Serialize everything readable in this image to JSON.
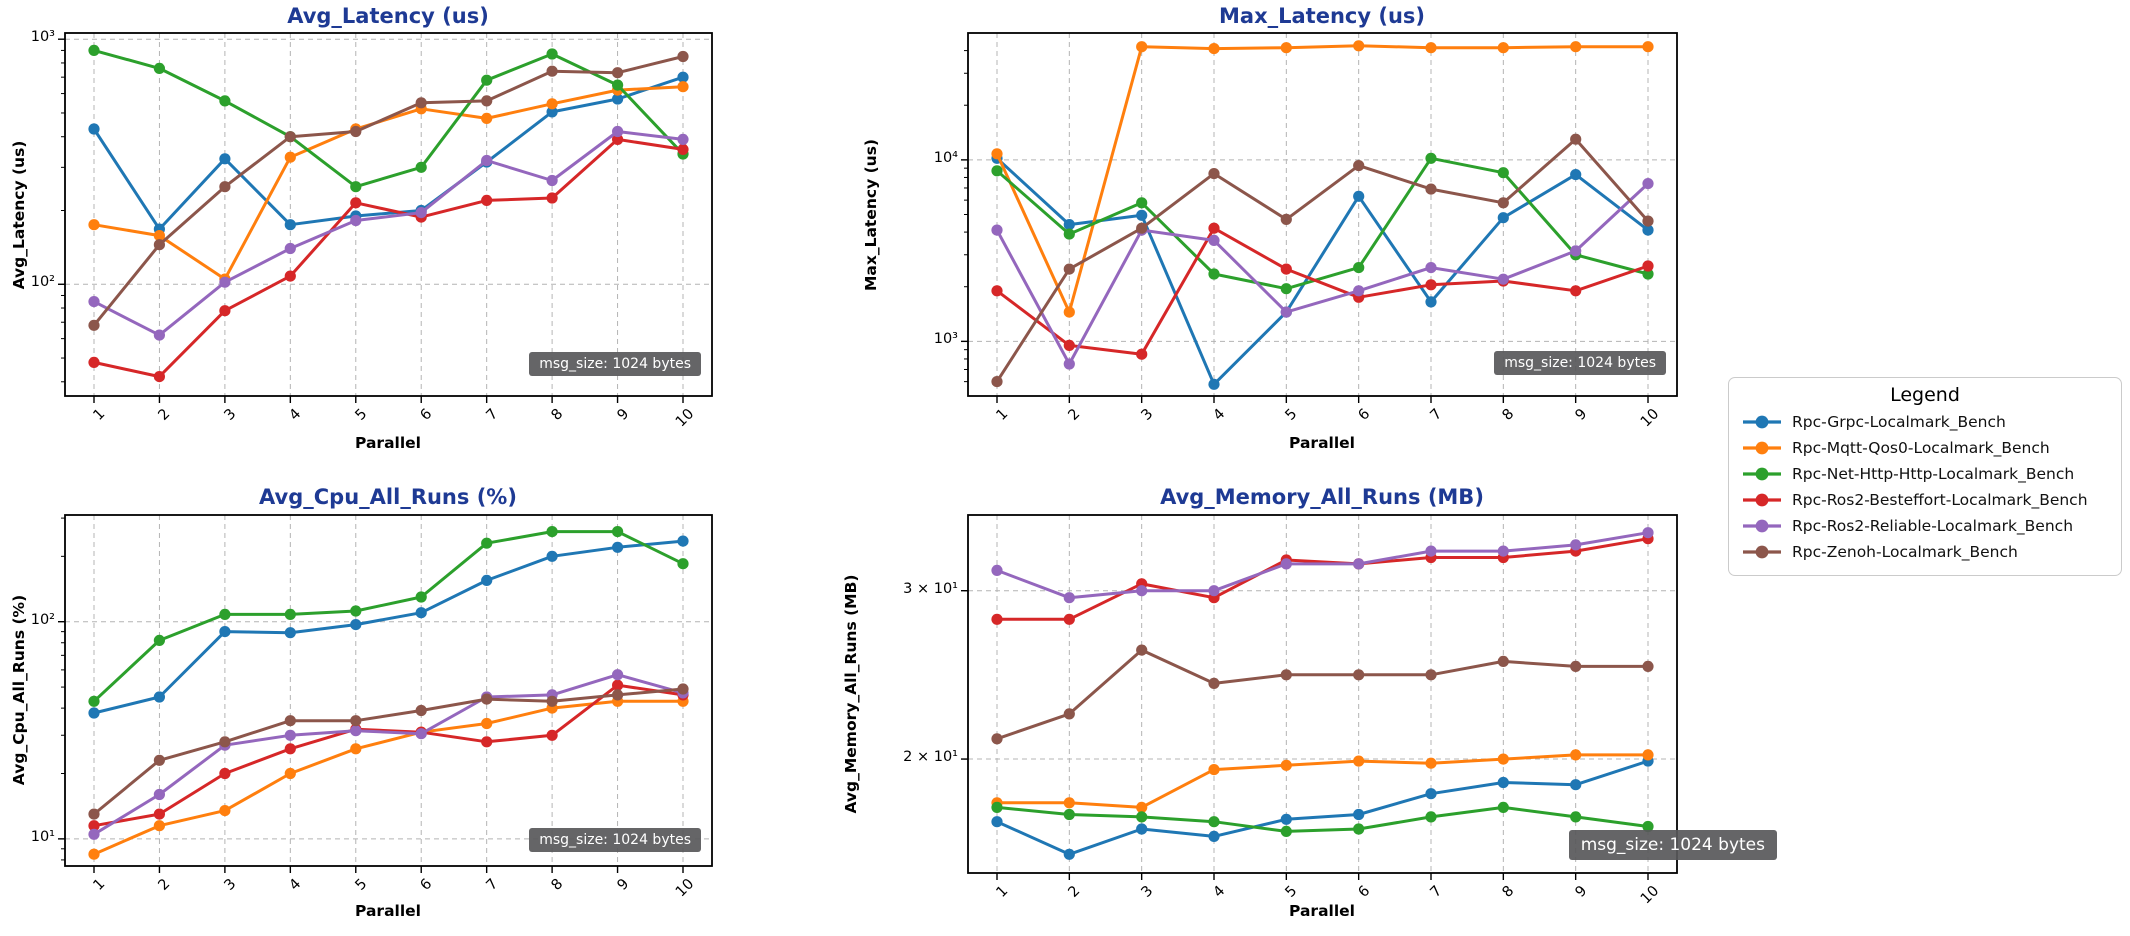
{
  "figure": {
    "background": "#ffffff",
    "title_color": "#1e3a94"
  },
  "legend": {
    "title": "Legend",
    "entries": [
      {
        "label": "Rpc-Grpc-Localmark_Bench",
        "color": "#1f77b4"
      },
      {
        "label": "Rpc-Mqtt-Qos0-Localmark_Bench",
        "color": "#ff7f0e"
      },
      {
        "label": "Rpc-Net-Http-Http-Localmark_Bench",
        "color": "#2ca02c"
      },
      {
        "label": "Rpc-Ros2-Besteffort-Localmark_Bench",
        "color": "#d62728"
      },
      {
        "label": "Rpc-Ros2-Reliable-Localmark_Bench",
        "color": "#9467bd"
      },
      {
        "label": "Rpc-Zenoh-Localmark_Bench",
        "color": "#8c564b"
      }
    ]
  },
  "chart_data": [
    {
      "type": "line",
      "title": "Avg_Latency (us)",
      "xlabel": "Parallel",
      "ylabel": "Avg_Latency (us)",
      "annotation": "msg_size: 1024 bytes",
      "yscale": "log",
      "grid": true,
      "ylim": [
        35,
        1060
      ],
      "x": [
        1,
        2,
        3,
        4,
        5,
        6,
        7,
        8,
        9,
        10
      ],
      "xticklabels": [
        "1",
        "2",
        "3",
        "4",
        "5",
        "6",
        "7",
        "8",
        "9",
        "10"
      ],
      "yticks": [
        {
          "value": 100,
          "label": "10²"
        },
        {
          "value": 1000,
          "label": "10³"
        }
      ],
      "series": [
        {
          "name": "Rpc-Grpc-Localmark_Bench",
          "color": "#1f77b4",
          "values": [
            430,
            168,
            325,
            175,
            190,
            200,
            315,
            505,
            570,
            700
          ]
        },
        {
          "name": "Rpc-Mqtt-Qos0-Localmark_Bench",
          "color": "#ff7f0e",
          "values": [
            175,
            158,
            105,
            330,
            430,
            520,
            475,
            545,
            620,
            640
          ]
        },
        {
          "name": "Rpc-Net-Http-Http-Localmark_Bench",
          "color": "#2ca02c",
          "values": [
            900,
            760,
            560,
            400,
            250,
            300,
            680,
            870,
            650,
            340
          ]
        },
        {
          "name": "Rpc-Ros2-Besteffort-Localmark_Bench",
          "color": "#d62728",
          "values": [
            48,
            42,
            78,
            108,
            215,
            188,
            220,
            225,
            390,
            355
          ]
        },
        {
          "name": "Rpc-Ros2-Reliable-Localmark_Bench",
          "color": "#9467bd",
          "values": [
            85,
            62,
            102,
            140,
            182,
            196,
            320,
            265,
            420,
            390
          ]
        },
        {
          "name": "Rpc-Zenoh-Localmark_Bench",
          "color": "#8c564b",
          "values": [
            68,
            145,
            250,
            400,
            420,
            550,
            560,
            740,
            730,
            850
          ]
        }
      ]
    },
    {
      "type": "line",
      "title": "Max_Latency (us)",
      "xlabel": "Parallel",
      "ylabel": "Max_Latency (us)",
      "annotation": "msg_size: 1024 bytes",
      "yscale": "log",
      "grid": true,
      "ylim": [
        500,
        50000
      ],
      "x": [
        1,
        2,
        3,
        4,
        5,
        6,
        7,
        8,
        9,
        10
      ],
      "xticklabels": [
        "1",
        "2",
        "3",
        "4",
        "5",
        "6",
        "7",
        "8",
        "9",
        "10"
      ],
      "yticks": [
        {
          "value": 1000,
          "label": "10³"
        },
        {
          "value": 10000,
          "label": "10⁴"
        }
      ],
      "series": [
        {
          "name": "Rpc-Grpc-Localmark_Bench",
          "color": "#1f77b4",
          "values": [
            10200,
            4400,
            4950,
            580,
            1450,
            6300,
            1650,
            4800,
            8300,
            4100
          ]
        },
        {
          "name": "Rpc-Mqtt-Qos0-Localmark_Bench",
          "color": "#ff7f0e",
          "values": [
            10800,
            1450,
            42000,
            41000,
            41500,
            42500,
            41500,
            41500,
            42000,
            42000
          ]
        },
        {
          "name": "Rpc-Net-Http-Http-Localmark_Bench",
          "color": "#2ca02c",
          "values": [
            8700,
            3900,
            5800,
            2350,
            1950,
            2550,
            10200,
            8500,
            3000,
            2350
          ]
        },
        {
          "name": "Rpc-Ros2-Besteffort-Localmark_Bench",
          "color": "#d62728",
          "values": [
            1900,
            950,
            850,
            4200,
            2500,
            1750,
            2050,
            2150,
            1900,
            2600
          ]
        },
        {
          "name": "Rpc-Ros2-Reliable-Localmark_Bench",
          "color": "#9467bd",
          "values": [
            4100,
            750,
            4100,
            3600,
            1450,
            1900,
            2550,
            2200,
            3150,
            7400
          ]
        },
        {
          "name": "Rpc-Zenoh-Localmark_Bench",
          "color": "#8c564b",
          "values": [
            600,
            2500,
            4200,
            8400,
            4700,
            9300,
            6900,
            5800,
            13000,
            4600
          ]
        }
      ]
    },
    {
      "type": "line",
      "title": "Avg_Cpu_All_Runs (%)",
      "xlabel": "Parallel",
      "ylabel": "Avg_Cpu_All_Runs (%)",
      "annotation": "msg_size: 1024 bytes",
      "yscale": "log",
      "grid": true,
      "ylim": [
        7.5,
        310
      ],
      "x": [
        1,
        2,
        3,
        4,
        5,
        6,
        7,
        8,
        9,
        10
      ],
      "xticklabels": [
        "1",
        "2",
        "3",
        "4",
        "5",
        "6",
        "7",
        "8",
        "9",
        "10"
      ],
      "yticks": [
        {
          "value": 10,
          "label": "10¹"
        },
        {
          "value": 100,
          "label": "10²"
        }
      ],
      "series": [
        {
          "name": "Rpc-Grpc-Localmark_Bench",
          "color": "#1f77b4",
          "values": [
            38,
            45,
            90,
            89,
            97,
            110,
            155,
            200,
            220,
            235
          ]
        },
        {
          "name": "Rpc-Mqtt-Qos0-Localmark_Bench",
          "color": "#ff7f0e",
          "values": [
            8.5,
            11.5,
            13.5,
            20,
            26,
            31,
            34,
            40,
            43,
            43
          ]
        },
        {
          "name": "Rpc-Net-Http-Http-Localmark_Bench",
          "color": "#2ca02c",
          "values": [
            43,
            82,
            108,
            108,
            112,
            130,
            230,
            260,
            260,
            185
          ]
        },
        {
          "name": "Rpc-Ros2-Besteffort-Localmark_Bench",
          "color": "#d62728",
          "values": [
            11.5,
            13,
            20,
            26,
            32,
            31,
            28,
            30,
            51,
            46
          ]
        },
        {
          "name": "Rpc-Ros2-Reliable-Localmark_Bench",
          "color": "#9467bd",
          "values": [
            10.5,
            16,
            27,
            30,
            31.5,
            30.5,
            45,
            46,
            57,
            47
          ]
        },
        {
          "name": "Rpc-Zenoh-Localmark_Bench",
          "color": "#8c564b",
          "values": [
            13,
            23,
            28,
            35,
            35,
            39,
            44,
            43,
            46,
            49
          ]
        }
      ]
    },
    {
      "type": "line",
      "title": "Avg_Memory_All_Runs (MB)",
      "xlabel": "Parallel",
      "ylabel": "Avg_Memory_All_Runs (MB)",
      "annotation": "msg_size: 1024 bytes",
      "yscale": "log",
      "grid": true,
      "ylim": [
        15.2,
        36
      ],
      "x": [
        1,
        2,
        3,
        4,
        5,
        6,
        7,
        8,
        9,
        10
      ],
      "xticklabels": [
        "1",
        "2",
        "3",
        "4",
        "5",
        "6",
        "7",
        "8",
        "9",
        "10"
      ],
      "yticks": [
        {
          "value": 20,
          "label": "2 × 10¹"
        },
        {
          "value": 30,
          "label": "3 × 10¹"
        }
      ],
      "series": [
        {
          "name": "Rpc-Grpc-Localmark_Bench",
          "color": "#1f77b4",
          "values": [
            17.2,
            15.9,
            16.9,
            16.6,
            17.3,
            17.5,
            18.4,
            18.9,
            18.8,
            19.9
          ]
        },
        {
          "name": "Rpc-Mqtt-Qos0-Localmark_Bench",
          "color": "#ff7f0e",
          "values": [
            18,
            18,
            17.8,
            19.5,
            19.7,
            19.9,
            19.8,
            20,
            20.2,
            20.2
          ]
        },
        {
          "name": "Rpc-Net-Http-Http-Localmark_Bench",
          "color": "#2ca02c",
          "values": [
            17.8,
            17.5,
            17.4,
            17.2,
            16.8,
            16.9,
            17.4,
            17.8,
            17.4,
            17
          ]
        },
        {
          "name": "Rpc-Ros2-Besteffort-Localmark_Bench",
          "color": "#d62728",
          "values": [
            28,
            28,
            30.5,
            29.5,
            32.3,
            32,
            32.5,
            32.5,
            33,
            34
          ]
        },
        {
          "name": "Rpc-Ros2-Reliable-Localmark_Bench",
          "color": "#9467bd",
          "values": [
            31.5,
            29.5,
            30,
            30,
            32,
            32,
            33,
            33,
            33.5,
            34.5
          ]
        },
        {
          "name": "Rpc-Zenoh-Localmark_Bench",
          "color": "#8c564b",
          "values": [
            21,
            22.3,
            26,
            24,
            24.5,
            24.5,
            24.5,
            25.3,
            25,
            25
          ]
        }
      ]
    }
  ]
}
